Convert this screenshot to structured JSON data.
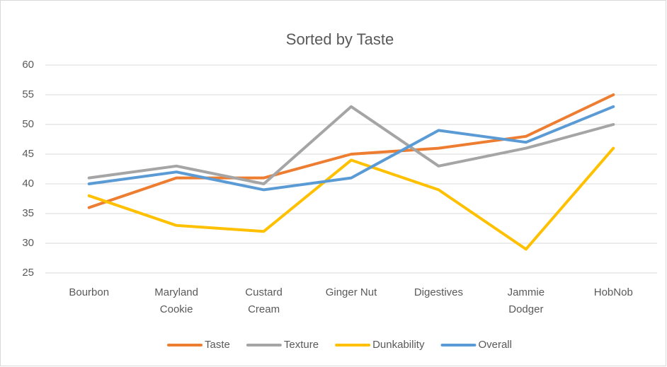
{
  "chart_data": {
    "type": "line",
    "title": "Sorted by Taste",
    "categories": [
      "Bourbon",
      "Maryland Cookie",
      "Custard Cream",
      "Ginger Nut",
      "Digestives",
      "Jammie Dodger",
      "HobNob"
    ],
    "series": [
      {
        "name": "Taste",
        "color": "#ed7d31",
        "values": [
          36,
          41,
          41,
          45,
          46,
          48,
          55
        ]
      },
      {
        "name": "Texture",
        "color": "#a5a5a5",
        "values": [
          41,
          43,
          40,
          53,
          43,
          46,
          50
        ]
      },
      {
        "name": "Dunkability",
        "color": "#ffc000",
        "values": [
          38,
          33,
          32,
          44,
          39,
          29,
          46
        ]
      },
      {
        "name": "Overall",
        "color": "#5b9bd5",
        "values": [
          40,
          42,
          39,
          41,
          49,
          47,
          53
        ]
      }
    ],
    "ylim": [
      25,
      60
    ],
    "yticks": [
      25,
      30,
      35,
      40,
      45,
      50,
      55,
      60
    ],
    "grid": true,
    "legend": "bottom"
  }
}
